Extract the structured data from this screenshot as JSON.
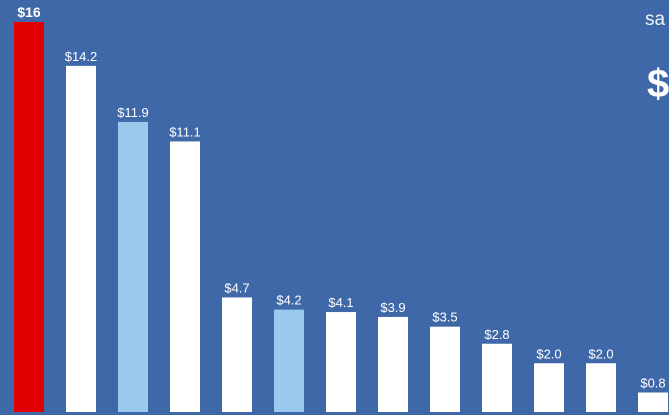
{
  "side_panel": {
    "label": "sa",
    "value": "$"
  },
  "colors": {
    "background": "#3f68a8",
    "highlight": "#e00000",
    "secondary": "#99c9ed",
    "default": "#ffffff"
  },
  "chart_data": {
    "type": "bar",
    "title": "",
    "xlabel": "",
    "ylabel": "",
    "ylim": [
      0,
      16
    ],
    "values": [
      16,
      14.2,
      11.9,
      11.1,
      4.7,
      4.2,
      4.1,
      3.9,
      3.5,
      2.8,
      2.0,
      2.0,
      0.8
    ],
    "data_labels": [
      "$16",
      "$14.2",
      "$11.9",
      "$11.1",
      "$4.7",
      "$4.2",
      "$4.1",
      "$3.9",
      "$3.5",
      "$2.8",
      "$2.0",
      "$2.0",
      "$0.8"
    ],
    "bar_colors": [
      "#e00000",
      "#ffffff",
      "#99c9ed",
      "#ffffff",
      "#ffffff",
      "#99c9ed",
      "#ffffff",
      "#ffffff",
      "#ffffff",
      "#ffffff",
      "#ffffff",
      "#ffffff",
      "#ffffff"
    ],
    "grid": false,
    "legend": "none"
  }
}
